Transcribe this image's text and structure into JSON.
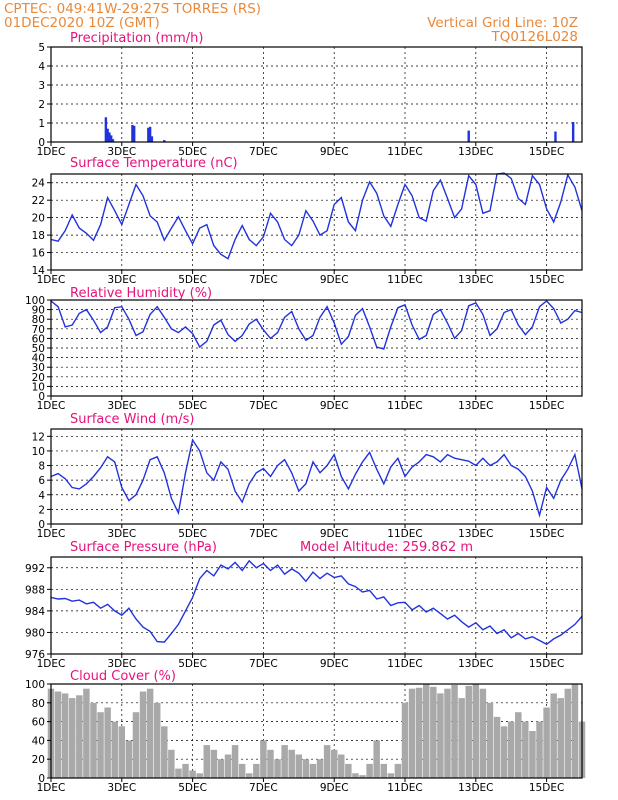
{
  "header": {
    "line1": "CPTEC:   049:41W-29:27S   TORRES (RS)",
    "line2": "01DEC2020 10Z (GMT)",
    "right1": "Vertical Grid Line: 10Z",
    "right2": "TQ0126L028"
  },
  "x_axis": {
    "start_day": 1,
    "end_day": 16,
    "tick_days": [
      1,
      3,
      5,
      7,
      9,
      11,
      13,
      15
    ],
    "tick_labels": [
      "1DEC",
      "3DEC",
      "5DEC",
      "7DEC",
      "9DEC",
      "11DEC",
      "13DEC",
      "15DEC"
    ]
  },
  "model_altitude": "Model Altitude: 259.862 m",
  "colors": {
    "line": "#2233dd",
    "bar": "#2233dd",
    "cloud": "#a9a9a9",
    "title": "#e6127d",
    "header": "#e8893c",
    "axis": "#000000"
  },
  "chart_data": [
    {
      "type": "bar",
      "title": "Precipitation (mm/h)",
      "ylim": [
        0,
        5
      ],
      "yticks": [
        0,
        1,
        2,
        3,
        4,
        5
      ],
      "x": [
        2.55,
        2.6,
        2.65,
        2.7,
        2.75,
        3.3,
        3.35,
        3.75,
        3.8,
        3.85,
        4.2,
        12.8,
        15.25,
        15.75
      ],
      "values": [
        1.3,
        0.7,
        0.5,
        0.35,
        0.15,
        0.9,
        0.85,
        0.75,
        0.8,
        0.3,
        0.1,
        0.6,
        0.55,
        1.05
      ]
    },
    {
      "type": "line",
      "title": "Surface Temperature (nC)",
      "ylim": [
        14,
        25
      ],
      "yticks": [
        14,
        16,
        18,
        20,
        22,
        24
      ],
      "x": [
        1,
        1.2,
        1.4,
        1.6,
        1.8,
        2,
        2.2,
        2.4,
        2.6,
        2.8,
        3,
        3.2,
        3.4,
        3.6,
        3.8,
        4,
        4.2,
        4.4,
        4.6,
        4.8,
        5,
        5.2,
        5.4,
        5.6,
        5.8,
        6,
        6.2,
        6.4,
        6.6,
        6.8,
        7,
        7.2,
        7.4,
        7.6,
        7.8,
        8,
        8.2,
        8.4,
        8.6,
        8.8,
        9,
        9.2,
        9.4,
        9.6,
        9.8,
        10,
        10.2,
        10.4,
        10.6,
        10.8,
        11,
        11.2,
        11.4,
        11.6,
        11.8,
        12,
        12.2,
        12.4,
        12.6,
        12.8,
        13,
        13.2,
        13.4,
        13.6,
        13.8,
        14,
        14.2,
        14.4,
        14.6,
        14.8,
        15,
        15.2,
        15.4,
        15.6,
        15.8,
        16
      ],
      "values": [
        17.5,
        17.3,
        18.5,
        20.3,
        18.8,
        18.2,
        17.4,
        19.2,
        22.3,
        20.8,
        19.2,
        21.5,
        23.8,
        22.5,
        20.2,
        19.5,
        17.4,
        18.8,
        20.1,
        18.5,
        17.0,
        18.8,
        19.2,
        16.8,
        15.8,
        15.3,
        17.5,
        19.1,
        17.5,
        16.8,
        17.8,
        20.5,
        19.5,
        17.5,
        16.8,
        18.0,
        20.8,
        19.6,
        18.0,
        18.5,
        21.5,
        22.3,
        19.5,
        18.5,
        22.0,
        24.1,
        22.8,
        20.2,
        19.0,
        21.5,
        23.8,
        22.5,
        20.0,
        19.6,
        23.1,
        24.3,
        22.2,
        20.0,
        21.0,
        24.8,
        23.8,
        20.5,
        20.8,
        25.0,
        25.1,
        24.5,
        22.2,
        21.5,
        24.8,
        23.8,
        21.0,
        19.5,
        21.8,
        24.9,
        23.5,
        20.8
      ]
    },
    {
      "type": "line",
      "title": "Relative Humidity (%)",
      "ylim": [
        0,
        100
      ],
      "yticks": [
        0,
        10,
        20,
        30,
        40,
        50,
        60,
        70,
        80,
        90,
        100
      ],
      "x": [
        1,
        1.2,
        1.4,
        1.6,
        1.8,
        2,
        2.2,
        2.4,
        2.6,
        2.8,
        3,
        3.2,
        3.4,
        3.6,
        3.8,
        4,
        4.2,
        4.4,
        4.6,
        4.8,
        5,
        5.2,
        5.4,
        5.6,
        5.8,
        6,
        6.2,
        6.4,
        6.6,
        6.8,
        7,
        7.2,
        7.4,
        7.6,
        7.8,
        8,
        8.2,
        8.4,
        8.6,
        8.8,
        9,
        9.2,
        9.4,
        9.6,
        9.8,
        10,
        10.2,
        10.4,
        10.6,
        10.8,
        11,
        11.2,
        11.4,
        11.6,
        11.8,
        12,
        12.2,
        12.4,
        12.6,
        12.8,
        13,
        13.2,
        13.4,
        13.6,
        13.8,
        14,
        14.2,
        14.4,
        14.6,
        14.8,
        15,
        15.2,
        15.4,
        15.6,
        15.8,
        16
      ],
      "values": [
        99,
        93,
        72,
        74,
        86,
        90,
        79,
        66,
        72,
        92,
        93,
        80,
        63,
        67,
        85,
        93,
        82,
        70,
        66,
        72,
        65,
        51,
        57,
        74,
        79,
        64,
        57,
        63,
        75,
        80,
        69,
        60,
        66,
        82,
        88,
        70,
        58,
        63,
        82,
        93,
        76,
        54,
        62,
        84,
        91,
        72,
        51,
        49,
        72,
        92,
        95,
        74,
        59,
        63,
        85,
        90,
        76,
        60,
        68,
        94,
        97,
        85,
        63,
        70,
        87,
        90,
        74,
        64,
        72,
        93,
        99,
        91,
        76,
        80,
        89,
        87
      ]
    },
    {
      "type": "line",
      "title": "Surface Wind (m/s)",
      "ylim": [
        0,
        13
      ],
      "yticks": [
        0,
        2,
        4,
        6,
        8,
        10,
        12
      ],
      "x": [
        1,
        1.2,
        1.4,
        1.6,
        1.8,
        2,
        2.2,
        2.4,
        2.6,
        2.8,
        3,
        3.2,
        3.4,
        3.6,
        3.8,
        4,
        4.2,
        4.4,
        4.6,
        4.8,
        5,
        5.2,
        5.4,
        5.6,
        5.8,
        6,
        6.2,
        6.4,
        6.6,
        6.8,
        7,
        7.2,
        7.4,
        7.6,
        7.8,
        8,
        8.2,
        8.4,
        8.6,
        8.8,
        9,
        9.2,
        9.4,
        9.6,
        9.8,
        10,
        10.2,
        10.4,
        10.6,
        10.8,
        11,
        11.2,
        11.4,
        11.6,
        11.8,
        12,
        12.2,
        12.4,
        12.6,
        12.8,
        13,
        13.2,
        13.4,
        13.6,
        13.8,
        14,
        14.2,
        14.4,
        14.6,
        14.8,
        15,
        15.2,
        15.4,
        15.6,
        15.8,
        16
      ],
      "values": [
        6.5,
        6.9,
        6.2,
        5.0,
        4.8,
        5.5,
        6.5,
        7.7,
        9.2,
        8.5,
        5.0,
        3.2,
        4.0,
        6.0,
        8.8,
        9.2,
        7.0,
        3.5,
        1.5,
        7.0,
        11.5,
        10.0,
        7.0,
        6.0,
        8.5,
        7.5,
        4.5,
        3.0,
        5.5,
        7.0,
        7.6,
        6.5,
        8.0,
        8.8,
        7.0,
        4.5,
        5.5,
        8.5,
        7.0,
        8.0,
        9.5,
        6.5,
        4.8,
        6.8,
        8.5,
        9.8,
        7.5,
        5.5,
        7.8,
        9.0,
        6.5,
        7.8,
        8.5,
        9.5,
        9.2,
        8.5,
        9.5,
        9.0,
        8.8,
        8.6,
        8.0,
        9.0,
        8.0,
        8.5,
        9.5,
        8.0,
        7.5,
        6.5,
        4.5,
        1.2,
        5.0,
        3.5,
        6.0,
        7.5,
        9.5,
        4.8
      ]
    },
    {
      "type": "line",
      "title": "Surface Pressure (hPa)",
      "ylim": [
        976,
        994
      ],
      "yticks": [
        976,
        980,
        984,
        988,
        992
      ],
      "x": [
        1,
        1.2,
        1.4,
        1.6,
        1.8,
        2,
        2.2,
        2.4,
        2.6,
        2.8,
        3,
        3.2,
        3.4,
        3.6,
        3.8,
        4,
        4.2,
        4.4,
        4.6,
        4.8,
        5,
        5.2,
        5.4,
        5.6,
        5.8,
        6,
        6.2,
        6.4,
        6.6,
        6.8,
        7,
        7.2,
        7.4,
        7.6,
        7.8,
        8,
        8.2,
        8.4,
        8.6,
        8.8,
        9,
        9.2,
        9.4,
        9.6,
        9.8,
        10,
        10.2,
        10.4,
        10.6,
        10.8,
        11,
        11.2,
        11.4,
        11.6,
        11.8,
        12,
        12.2,
        12.4,
        12.6,
        12.8,
        13,
        13.2,
        13.4,
        13.6,
        13.8,
        14,
        14.2,
        14.4,
        14.6,
        14.8,
        15,
        15.2,
        15.4,
        15.6,
        15.8,
        16
      ],
      "values": [
        986.5,
        986.2,
        986.3,
        985.8,
        986.0,
        985.3,
        985.6,
        984.5,
        985.2,
        984.0,
        983.2,
        984.5,
        982.5,
        981.0,
        980.2,
        978.3,
        978.2,
        979.8,
        981.5,
        984.0,
        986.5,
        990.0,
        991.5,
        990.5,
        992.5,
        991.8,
        993.0,
        991.5,
        993.3,
        992.0,
        992.8,
        991.5,
        992.5,
        990.8,
        991.8,
        991.0,
        989.5,
        991.2,
        990.0,
        991.0,
        990.2,
        990.5,
        989.0,
        988.5,
        987.5,
        987.8,
        986.2,
        986.6,
        985.0,
        985.5,
        985.6,
        984.2,
        985.0,
        983.8,
        984.5,
        983.5,
        982.5,
        983.2,
        982.0,
        981.0,
        981.8,
        980.5,
        981.2,
        979.8,
        980.5,
        979.0,
        979.8,
        978.8,
        979.2,
        978.5,
        977.8,
        978.8,
        979.5,
        980.5,
        981.5,
        983.0
      ]
    },
    {
      "type": "area",
      "title": "Cloud Cover (%)",
      "ylim": [
        0,
        100
      ],
      "yticks": [
        0,
        20,
        40,
        60,
        80,
        100
      ],
      "x": [
        1,
        1.2,
        1.4,
        1.6,
        1.8,
        2,
        2.2,
        2.4,
        2.6,
        2.8,
        3,
        3.2,
        3.4,
        3.6,
        3.8,
        4,
        4.2,
        4.4,
        4.6,
        4.8,
        5,
        5.2,
        5.4,
        5.6,
        5.8,
        6,
        6.2,
        6.4,
        6.6,
        6.8,
        7,
        7.2,
        7.4,
        7.6,
        7.8,
        8,
        8.2,
        8.4,
        8.6,
        8.8,
        9,
        9.2,
        9.4,
        9.6,
        9.8,
        10,
        10.2,
        10.4,
        10.6,
        10.8,
        11,
        11.2,
        11.4,
        11.6,
        11.8,
        12,
        12.2,
        12.4,
        12.6,
        12.8,
        13,
        13.2,
        13.4,
        13.6,
        13.8,
        14,
        14.2,
        14.4,
        14.6,
        14.8,
        15,
        15.2,
        15.4,
        15.6,
        15.8,
        16
      ],
      "values": [
        95,
        92,
        90,
        85,
        88,
        95,
        80,
        70,
        75,
        60,
        55,
        40,
        70,
        92,
        95,
        80,
        55,
        30,
        10,
        15,
        8,
        5,
        35,
        30,
        20,
        25,
        35,
        15,
        5,
        15,
        40,
        30,
        20,
        35,
        30,
        25,
        20,
        15,
        20,
        35,
        30,
        25,
        15,
        5,
        3,
        15,
        40,
        15,
        5,
        15,
        80,
        95,
        96,
        100,
        97,
        90,
        95,
        99,
        85,
        98,
        100,
        95,
        80,
        65,
        55,
        60,
        70,
        60,
        50,
        60,
        75,
        90,
        85,
        95,
        100,
        60
      ]
    }
  ]
}
